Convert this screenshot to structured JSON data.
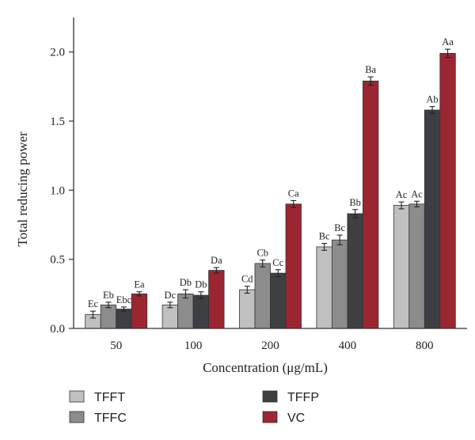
{
  "chart_data": {
    "type": "bar",
    "xlabel": "Concentration (μg/mL)",
    "ylabel": "Total reducing power",
    "ylim": [
      0,
      2.25
    ],
    "yticks": [
      "0.0",
      "0.5",
      "1.0",
      "1.5",
      "2.0"
    ],
    "ytick_values": [
      0,
      0.5,
      1.0,
      1.5,
      2.0
    ],
    "categories": [
      "50",
      "100",
      "200",
      "400",
      "800"
    ],
    "grid": false,
    "legend_position": "bottom",
    "series": [
      {
        "name": "TFFT",
        "color": "#c0c0c0",
        "values": [
          0.1,
          0.17,
          0.28,
          0.59,
          0.89
        ],
        "errors": [
          0.025,
          0.02,
          0.025,
          0.025,
          0.025
        ],
        "labels": [
          "Ec",
          "Dc",
          "Cd",
          "Bc",
          "Ac"
        ]
      },
      {
        "name": "TFFC",
        "color": "#8c8c8c",
        "values": [
          0.17,
          0.25,
          0.47,
          0.64,
          0.9
        ],
        "errors": [
          0.02,
          0.03,
          0.025,
          0.035,
          0.02
        ],
        "labels": [
          "Eb",
          "Db",
          "Cb",
          "Bc",
          "Ac"
        ]
      },
      {
        "name": "TFFP",
        "color": "#3d3f43",
        "values": [
          0.14,
          0.24,
          0.4,
          0.83,
          1.58
        ],
        "errors": [
          0.015,
          0.025,
          0.025,
          0.03,
          0.025
        ],
        "labels": [
          "Ebc",
          "Db",
          "Cc",
          "Bb",
          "Ab"
        ]
      },
      {
        "name": "VC",
        "color": "#9b2631",
        "values": [
          0.25,
          0.42,
          0.9,
          1.79,
          1.99
        ],
        "errors": [
          0.015,
          0.02,
          0.025,
          0.03,
          0.03
        ],
        "labels": [
          "Ea",
          "Da",
          "Ca",
          "Ba",
          "Aa"
        ]
      }
    ]
  }
}
